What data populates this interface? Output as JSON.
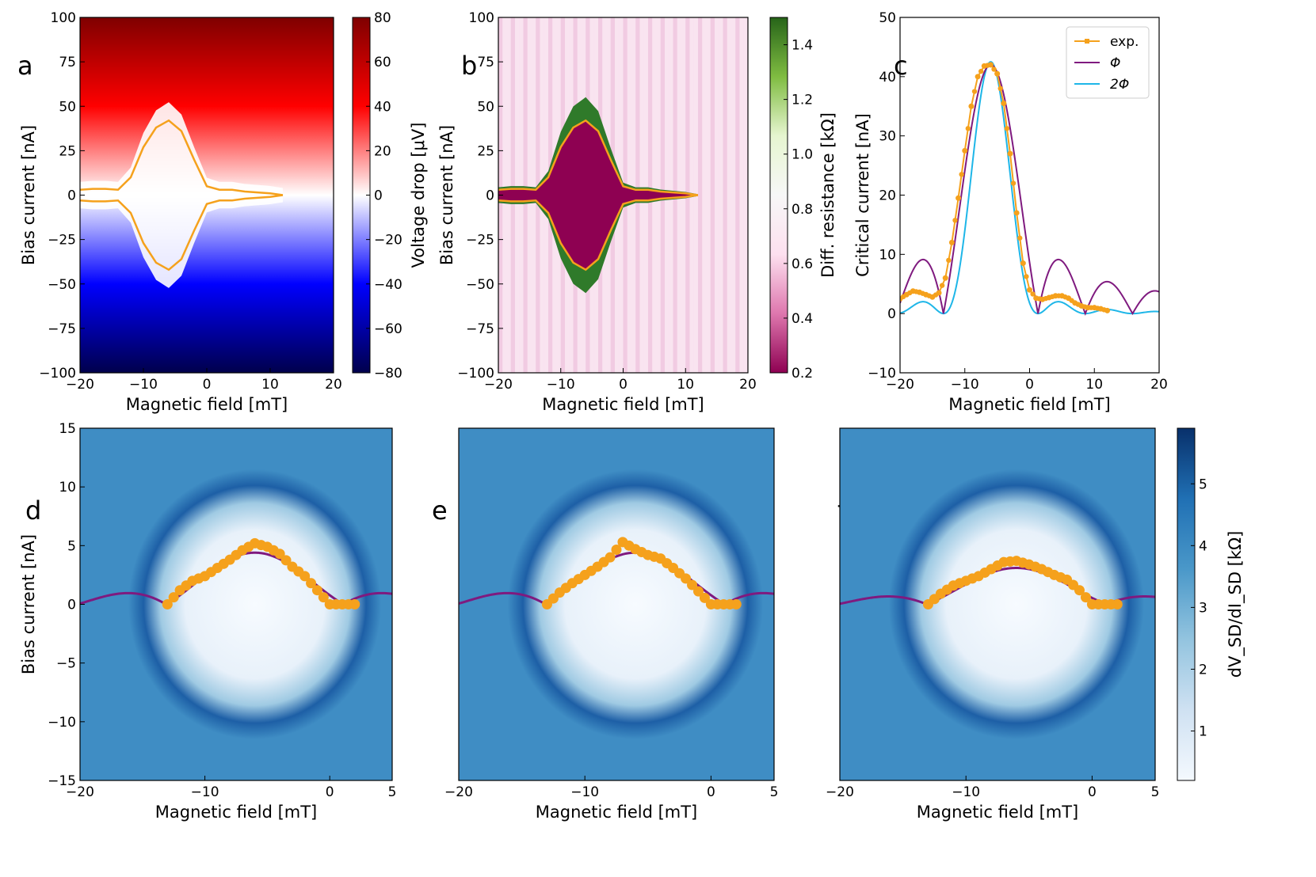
{
  "panel_letters": {
    "a": "a",
    "b": "b",
    "c": "c",
    "d": "d",
    "e": "e",
    "f": "f"
  },
  "colors": {
    "orange": "#f5a11c",
    "purple": "#7f1a7f",
    "cyan": "#1eb6e8",
    "blues": [
      "#f4f9fe",
      "#cfe1f2",
      "#93c4df",
      "#4a98c9",
      "#2070b4",
      "#08306b"
    ],
    "seismic": [
      "#00004c",
      "#0000ff",
      "#ffffff",
      "#ff0000",
      "#7f0000"
    ],
    "piyg": [
      "#8e0152",
      "#de77ae",
      "#fde0ef",
      "#f7f7f7",
      "#e6f5d0",
      "#7fbc41",
      "#276419"
    ]
  },
  "chart_data": [
    {
      "id": "a",
      "type": "heatmap",
      "title": "",
      "xlabel": "Magnetic field [mT]",
      "ylabel": "Bias current [nA]",
      "xlim": [
        -20,
        20
      ],
      "ylim": [
        -100,
        100
      ],
      "xticks": [
        "−20",
        "−10",
        "0",
        "10",
        "20"
      ],
      "xtick_values": [
        -20,
        -10,
        0,
        10,
        20
      ],
      "yticks": [
        "−100",
        "−75",
        "−50",
        "−25",
        "0",
        "25",
        "50",
        "75",
        "100"
      ],
      "ytick_values": [
        -100,
        -75,
        -50,
        -25,
        0,
        25,
        50,
        75,
        100
      ],
      "colorbar": {
        "label": "Voltage drop [μV]",
        "range": [
          -80,
          80
        ],
        "ticks": [
          "−80",
          "−60",
          "−40",
          "−20",
          "0",
          "20",
          "40",
          "60",
          "80"
        ],
        "tick_values": [
          -80,
          -60,
          -40,
          -20,
          0,
          20,
          40,
          60,
          80
        ]
      },
      "overlay": {
        "name": "switching current",
        "field_mT": [
          -20,
          -18,
          -16,
          -14,
          -12,
          -10,
          -8,
          -6,
          -4,
          -2,
          0,
          2,
          4,
          6,
          8,
          10,
          12
        ],
        "current_nA": [
          3,
          3.5,
          3.5,
          3,
          10,
          27,
          38,
          42,
          36,
          20,
          5,
          3,
          3,
          2,
          1.5,
          1,
          0
        ]
      }
    },
    {
      "id": "b",
      "type": "heatmap",
      "title": "",
      "xlabel": "Magnetic field [mT]",
      "ylabel": "Bias current [nA]",
      "xlim": [
        -20,
        20
      ],
      "ylim": [
        -100,
        100
      ],
      "xticks": [
        "−20",
        "−10",
        "0",
        "10",
        "20"
      ],
      "xtick_values": [
        -20,
        -10,
        0,
        10,
        20
      ],
      "yticks": [
        "−100",
        "−75",
        "−50",
        "−25",
        "0",
        "25",
        "50",
        "75",
        "100"
      ],
      "ytick_values": [
        -100,
        -75,
        -50,
        -25,
        0,
        25,
        50,
        75,
        100
      ],
      "colorbar": {
        "label": "Diff. resistance [kΩ]",
        "range": [
          0.2,
          1.5
        ],
        "ticks": [
          "0.2",
          "0.4",
          "0.6",
          "0.8",
          "1.0",
          "1.2",
          "1.4"
        ],
        "tick_values": [
          0.2,
          0.4,
          0.6,
          0.8,
          1.0,
          1.2,
          1.4
        ]
      },
      "overlay": {
        "name": "switching current",
        "field_mT": [
          -20,
          -18,
          -16,
          -14,
          -12,
          -10,
          -8,
          -6,
          -4,
          -2,
          0,
          2,
          4,
          6,
          8,
          10,
          12
        ],
        "current_nA": [
          3,
          3.5,
          3.5,
          3,
          10,
          27,
          38,
          42,
          36,
          20,
          5,
          3,
          3,
          2,
          1.5,
          1,
          0
        ]
      }
    },
    {
      "id": "c",
      "type": "line",
      "title": "",
      "xlabel": "Magnetic field [mT]",
      "ylabel": "Critical current [nA]",
      "xlim": [
        -20,
        20
      ],
      "ylim": [
        -10,
        50
      ],
      "xticks": [
        "−20",
        "−10",
        "0",
        "10",
        "20"
      ],
      "xtick_values": [
        -20,
        -10,
        0,
        10,
        20
      ],
      "yticks": [
        "−10",
        "0",
        "10",
        "20",
        "30",
        "40",
        "50"
      ],
      "ytick_values": [
        -10,
        0,
        10,
        20,
        30,
        40,
        50
      ],
      "legend_position": "top-right",
      "series": [
        {
          "name": "exp.",
          "x": [
            -20,
            -19,
            -18,
            -17,
            -16,
            -15,
            -14,
            -13,
            -12,
            -11,
            -10,
            -9,
            -8,
            -7,
            -6,
            -5,
            -4,
            -3,
            -2,
            -1,
            0,
            1,
            2,
            3,
            4,
            5,
            6,
            7,
            8,
            9,
            10,
            11,
            12
          ],
          "y": [
            2.5,
            3.2,
            3.8,
            3.6,
            3.2,
            2.8,
            3.5,
            6,
            12,
            19.5,
            27.5,
            35,
            40,
            41.8,
            42,
            40.5,
            35.5,
            27,
            17,
            8.5,
            4,
            2.6,
            2.4,
            2.7,
            3.0,
            3.0,
            2.6,
            1.8,
            1.3,
            1.0,
            1.0,
            0.8,
            0.5
          ]
        },
        {
          "name": "Φ",
          "model": "single-period fraunhofer",
          "center": -6,
          "node_spacing": 7.3,
          "peak": 42
        },
        {
          "name": "2Φ",
          "model": "double-period fraunhofer",
          "center": -6,
          "node_spacing": 7.3,
          "peak": 42.5
        }
      ]
    },
    {
      "id": "d",
      "type": "heatmap",
      "title": "",
      "xlabel": "Magnetic field [mT]",
      "ylabel": "Bias current [nA]",
      "xlim": [
        -20,
        5
      ],
      "ylim": [
        -15,
        15
      ],
      "xticks": [
        "−20",
        "−10",
        "0",
        "5"
      ],
      "xtick_values": [
        -20,
        -10,
        0,
        5
      ],
      "yticks": [
        "−15",
        "−10",
        "−5",
        "0",
        "5",
        "10",
        "15"
      ],
      "ytick_values": [
        -15,
        -10,
        -5,
        0,
        5,
        10,
        15
      ],
      "fit_peak_nA": 4.4,
      "points": {
        "field_mT": [
          -13,
          -12,
          -11,
          -10,
          -9,
          -8,
          -7,
          -6,
          -5,
          -4,
          -3,
          -2,
          -1,
          0,
          1,
          2
        ],
        "current_nA": [
          0,
          1.2,
          2,
          2.4,
          3.1,
          3.8,
          4.6,
          5.2,
          4.9,
          4.3,
          3.2,
          2.4,
          1.2,
          0,
          0,
          0
        ]
      }
    },
    {
      "id": "e",
      "type": "heatmap",
      "title": "",
      "xlabel": "Magnetic field [mT]",
      "ylabel": "",
      "xlim": [
        -20,
        5
      ],
      "ylim": [
        -15,
        15
      ],
      "xticks": [
        "−20",
        "−10",
        "0",
        "5"
      ],
      "xtick_values": [
        -20,
        -10,
        0,
        5
      ],
      "fit_peak_nA": 4.4,
      "points": {
        "field_mT": [
          -13,
          -12,
          -11,
          -10,
          -9,
          -8,
          -7,
          -6,
          -5,
          -4,
          -3,
          -2,
          -1,
          0,
          1,
          2
        ],
        "current_nA": [
          0,
          1.0,
          1.8,
          2.5,
          3.2,
          4.0,
          5.3,
          4.7,
          4.2,
          3.9,
          3.1,
          2.2,
          1.1,
          0,
          0,
          0
        ]
      }
    },
    {
      "id": "f",
      "type": "heatmap",
      "title": "",
      "xlabel": "Magnetic field [mT]",
      "ylabel": "",
      "xlim": [
        -20,
        5
      ],
      "ylim": [
        -15,
        15
      ],
      "xticks": [
        "−20",
        "−10",
        "0",
        "5"
      ],
      "xtick_values": [
        -20,
        -10,
        0,
        5
      ],
      "fit_peak_nA": 3.1,
      "colorbar": {
        "label": "dV_SD/dI_SD [kΩ]",
        "range": [
          0.2,
          5.9
        ],
        "ticks": [
          "1",
          "2",
          "3",
          "4",
          "5"
        ],
        "tick_values": [
          1,
          2,
          3,
          4,
          5
        ]
      },
      "points": {
        "field_mT": [
          -13,
          -12,
          -11,
          -10,
          -9,
          -8,
          -7,
          -6,
          -5,
          -4,
          -3,
          -2,
          -1,
          0,
          1,
          2
        ],
        "current_nA": [
          0,
          0.9,
          1.6,
          2.0,
          2.4,
          3.0,
          3.6,
          3.7,
          3.4,
          3.0,
          2.5,
          2.1,
          1.2,
          0,
          0,
          0
        ]
      }
    }
  ]
}
